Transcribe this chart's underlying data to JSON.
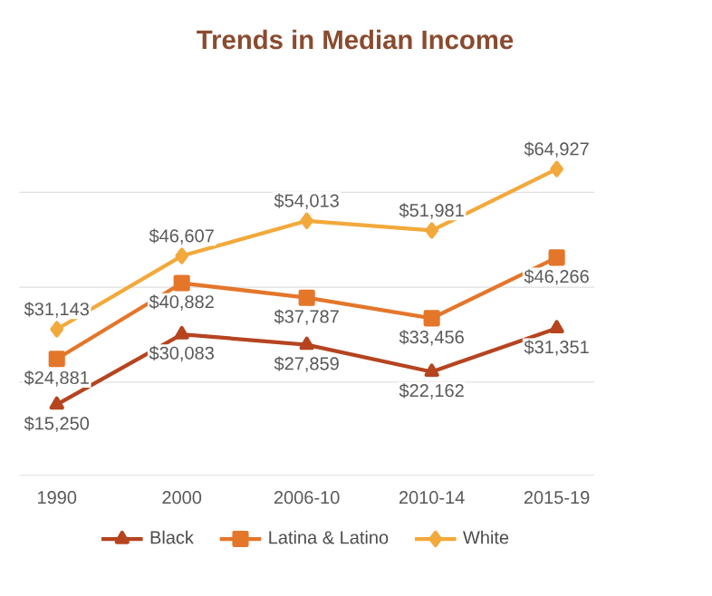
{
  "chart_data": {
    "type": "line",
    "title": "Trends in Median Income",
    "categories": [
      "1990",
      "2000",
      "2006-10",
      "2010-14",
      "2015-19"
    ],
    "series": [
      {
        "name": "Black",
        "color": "#b5441f",
        "marker": "triangle",
        "values": [
          15250,
          30083,
          27859,
          22162,
          31351
        ],
        "value_labels": [
          "$15,250",
          "$30,083",
          "$27,859",
          "$22,162",
          "$31,351"
        ]
      },
      {
        "name": "Latina & Latino",
        "color": "#e4762a",
        "marker": "square",
        "values": [
          24881,
          40882,
          37787,
          33456,
          46266
        ],
        "value_labels": [
          "$24,881",
          "$40,882",
          "$37,787",
          "$33,456",
          "$46,266"
        ]
      },
      {
        "name": "White",
        "color": "#f2a93b",
        "marker": "diamond",
        "values": [
          31143,
          46607,
          54013,
          51981,
          64927
        ],
        "value_labels": [
          "$31,143",
          "$46,607",
          "$54,013",
          "$51,981",
          "$64,927"
        ]
      }
    ],
    "grid": "y",
    "tick_labels": "x",
    "legend": "bottom",
    "line_style": "solid"
  }
}
